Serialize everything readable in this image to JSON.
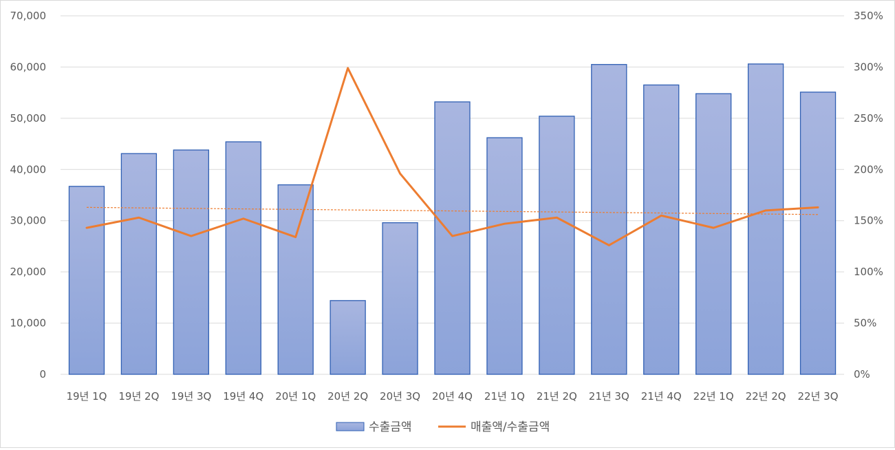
{
  "chart_data": {
    "type": "bar",
    "categories": [
      "19년 1Q",
      "19년 2Q",
      "19년 3Q",
      "19년 4Q",
      "20년 1Q",
      "20년 2Q",
      "20년 3Q",
      "20년 4Q",
      "21년 1Q",
      "21년 2Q",
      "21년 3Q",
      "21년 4Q",
      "22년 1Q",
      "22년 2Q",
      "22년 3Q"
    ],
    "series": [
      {
        "name": "수출금액",
        "type": "bar",
        "axis": "left",
        "values": [
          36700,
          43100,
          43800,
          45400,
          37000,
          14400,
          29600,
          53200,
          46200,
          50400,
          60500,
          56500,
          54800,
          60600,
          55100
        ]
      },
      {
        "name": "매출액/수출금액",
        "type": "line",
        "axis": "right",
        "values": [
          1.43,
          1.53,
          1.35,
          1.52,
          1.34,
          2.99,
          1.96,
          1.35,
          1.47,
          1.53,
          1.26,
          1.55,
          1.43,
          1.6,
          1.63
        ]
      }
    ],
    "trendline": {
      "series": "매출액/수출금액",
      "type": "linear",
      "start": 1.63,
      "end": 1.56,
      "color": "#ed7d31"
    },
    "yaxis_left": {
      "min": 0,
      "max": 70000,
      "step": 10000,
      "tick_labels": [
        "0",
        "10,000",
        "20,000",
        "30,000",
        "40,000",
        "50,000",
        "60,000",
        "70,000"
      ]
    },
    "yaxis_right": {
      "min": 0,
      "max": 3.5,
      "step": 0.5,
      "tick_labels": [
        "0%",
        "50%",
        "100%",
        "150%",
        "200%",
        "250%",
        "300%",
        "350%"
      ]
    },
    "grid": true,
    "legend_position": "bottom",
    "colors": {
      "bar_top": "#a9b6e0",
      "bar_bottom": "#8ca3d9",
      "bar_border": "#2f5fb3",
      "line": "#ed7d31",
      "grid": "#d9d9d9"
    }
  }
}
